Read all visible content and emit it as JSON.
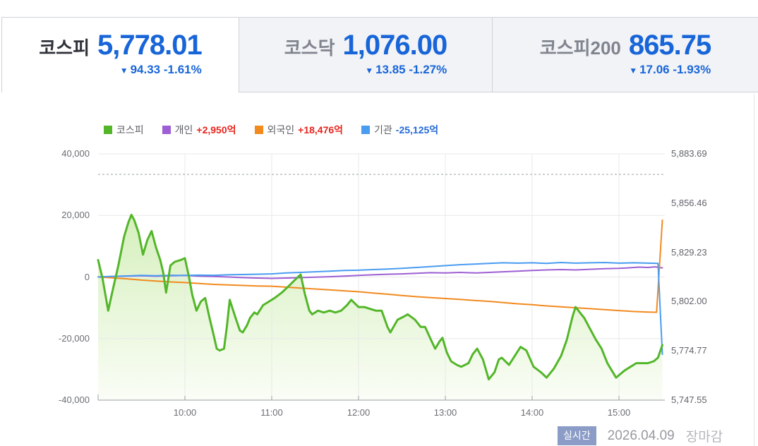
{
  "theme": {
    "down_blue": "#1765d8",
    "up_red": "#e7251d",
    "badge_bg": "#8b9cc6",
    "grid": "#e8e8e8",
    "axis": "#9aa0a6"
  },
  "tabs": [
    {
      "label": "코스피",
      "value": "5,778.01",
      "arrow": "▼",
      "change": "94.33 -1.61%",
      "direction": "down",
      "active": true
    },
    {
      "label": "코스닥",
      "value": "1,076.00",
      "arrow": "▼",
      "change": "13.85 -1.27%",
      "direction": "down",
      "active": false
    },
    {
      "label": "코스피200",
      "value": "865.75",
      "arrow": "▼",
      "change": "17.06 -1.93%",
      "direction": "down",
      "active": false
    }
  ],
  "legend": {
    "items": [
      {
        "label": "코스피",
        "color": "#53b629"
      },
      {
        "label": "개인",
        "value": "+2,950억",
        "color": "#9d5fd3",
        "value_color": "#e7251d"
      },
      {
        "label": "외국인",
        "value": "+18,476억",
        "color": "#f28a1f",
        "value_color": "#e7251d"
      },
      {
        "label": "기관",
        "value": "-25,125억",
        "color": "#4a9cf0",
        "value_color": "#2469d9"
      }
    ]
  },
  "footer": {
    "badge": "실시간",
    "date": "2026.04.09",
    "status": "장마감"
  },
  "chart_data": {
    "type": "line",
    "x_axis": {
      "unit": "minutes_after_09:00",
      "start": "09:00",
      "end": "15:30",
      "ticks": [
        {
          "minutes": 60,
          "label": "10:00"
        },
        {
          "minutes": 120,
          "label": "11:00"
        },
        {
          "minutes": 180,
          "label": "12:00"
        },
        {
          "minutes": 240,
          "label": "13:00"
        },
        {
          "minutes": 300,
          "label": "14:00"
        },
        {
          "minutes": 360,
          "label": "15:00"
        }
      ]
    },
    "left_axis": {
      "min": -40000,
      "max": 40000,
      "tick_values": [
        40000,
        20000,
        0,
        -20000,
        -40000
      ],
      "tick_labels": [
        "40,000",
        "20,000",
        "0",
        "-20,000",
        "-40,000"
      ]
    },
    "right_axis": {
      "min": 5747.55,
      "max": 5883.69,
      "tick_values": [
        5883.69,
        5856.46,
        5829.23,
        5802.0,
        5774.77,
        5747.55
      ],
      "tick_labels": [
        "5,883.69",
        "5,856.46",
        "5,829.23",
        "5,802.00",
        "5,774.77",
        "5,747.55"
      ]
    },
    "prev_close": 5872.34,
    "grid": true,
    "legend_position": "top",
    "series": [
      {
        "name": "코스피",
        "axis": "right",
        "color": "#53b629",
        "width": 3,
        "fill": true,
        "fill_top": "#c9ebaa",
        "fill_bottom": "#fafdf6",
        "values": [
          [
            0,
            5825
          ],
          [
            3,
            5815
          ],
          [
            7,
            5797
          ],
          [
            10,
            5808
          ],
          [
            14,
            5822
          ],
          [
            18,
            5838
          ],
          [
            21,
            5846
          ],
          [
            23,
            5850
          ],
          [
            25,
            5847
          ],
          [
            28,
            5840
          ],
          [
            31,
            5828
          ],
          [
            34,
            5836
          ],
          [
            37,
            5841
          ],
          [
            40,
            5832
          ],
          [
            43,
            5825
          ],
          [
            45,
            5818
          ],
          [
            47,
            5807
          ],
          [
            50,
            5822
          ],
          [
            53,
            5824
          ],
          [
            57,
            5825
          ],
          [
            60,
            5826
          ],
          [
            63,
            5815
          ],
          [
            65,
            5806
          ],
          [
            68,
            5797
          ],
          [
            71,
            5802
          ],
          [
            74,
            5804
          ],
          [
            77,
            5793
          ],
          [
            80,
            5783
          ],
          [
            82,
            5776
          ],
          [
            84,
            5775
          ],
          [
            87,
            5776
          ],
          [
            89,
            5788
          ],
          [
            91,
            5803
          ],
          [
            95,
            5793
          ],
          [
            98,
            5786
          ],
          [
            100,
            5785
          ],
          [
            103,
            5789
          ],
          [
            105,
            5793
          ],
          [
            108,
            5796
          ],
          [
            110,
            5795
          ],
          [
            114,
            5800
          ],
          [
            118,
            5802
          ],
          [
            122,
            5804
          ],
          [
            127,
            5807
          ],
          [
            131,
            5810
          ],
          [
            136,
            5814
          ],
          [
            140,
            5817
          ],
          [
            143,
            5806
          ],
          [
            146,
            5797
          ],
          [
            148,
            5795
          ],
          [
            152,
            5797
          ],
          [
            156,
            5796
          ],
          [
            160,
            5797
          ],
          [
            164,
            5796
          ],
          [
            168,
            5797
          ],
          [
            172,
            5800
          ],
          [
            175,
            5803
          ],
          [
            180,
            5799
          ],
          [
            184,
            5799
          ],
          [
            188,
            5798
          ],
          [
            192,
            5797
          ],
          [
            196,
            5797
          ],
          [
            200,
            5788
          ],
          [
            202,
            5785
          ],
          [
            207,
            5792
          ],
          [
            212,
            5794
          ],
          [
            214,
            5795
          ],
          [
            219,
            5792
          ],
          [
            223,
            5788
          ],
          [
            226,
            5788
          ],
          [
            230,
            5781
          ],
          [
            233,
            5776
          ],
          [
            236,
            5780
          ],
          [
            238,
            5782
          ],
          [
            241,
            5774
          ],
          [
            244,
            5769
          ],
          [
            248,
            5767
          ],
          [
            251,
            5766
          ],
          [
            256,
            5768
          ],
          [
            259,
            5773
          ],
          [
            262,
            5776
          ],
          [
            266,
            5770
          ],
          [
            270,
            5759
          ],
          [
            274,
            5763
          ],
          [
            277,
            5770
          ],
          [
            279,
            5771
          ],
          [
            284,
            5767
          ],
          [
            288,
            5772
          ],
          [
            292,
            5777
          ],
          [
            296,
            5775
          ],
          [
            301,
            5766
          ],
          [
            306,
            5763
          ],
          [
            310,
            5760
          ],
          [
            315,
            5765
          ],
          [
            320,
            5772
          ],
          [
            324,
            5781
          ],
          [
            328,
            5794
          ],
          [
            330,
            5799
          ],
          [
            333,
            5796
          ],
          [
            336,
            5793
          ],
          [
            340,
            5787
          ],
          [
            344,
            5781
          ],
          [
            348,
            5776
          ],
          [
            352,
            5768
          ],
          [
            355,
            5764
          ],
          [
            358,
            5760
          ],
          [
            361,
            5762
          ],
          [
            364,
            5764
          ],
          [
            368,
            5766
          ],
          [
            372,
            5768
          ],
          [
            376,
            5768
          ],
          [
            380,
            5768
          ],
          [
            384,
            5769
          ],
          [
            387,
            5771
          ],
          [
            390,
            5778
          ]
        ]
      },
      {
        "name": "개인",
        "axis": "left",
        "color": "#9d5fd3",
        "width": 2,
        "values": [
          [
            0,
            0
          ],
          [
            10,
            150
          ],
          [
            20,
            300
          ],
          [
            30,
            400
          ],
          [
            40,
            250
          ],
          [
            50,
            400
          ],
          [
            60,
            500
          ],
          [
            70,
            300
          ],
          [
            80,
            150
          ],
          [
            90,
            0
          ],
          [
            100,
            -200
          ],
          [
            110,
            -350
          ],
          [
            120,
            -450
          ],
          [
            130,
            -350
          ],
          [
            140,
            -200
          ],
          [
            150,
            -50
          ],
          [
            160,
            100
          ],
          [
            170,
            300
          ],
          [
            180,
            500
          ],
          [
            190,
            700
          ],
          [
            200,
            900
          ],
          [
            210,
            1000
          ],
          [
            220,
            1200
          ],
          [
            230,
            1400
          ],
          [
            240,
            1300
          ],
          [
            250,
            1500
          ],
          [
            255,
            1400
          ],
          [
            262,
            1300
          ],
          [
            270,
            1500
          ],
          [
            280,
            1700
          ],
          [
            290,
            1900
          ],
          [
            300,
            2100
          ],
          [
            310,
            2300
          ],
          [
            320,
            2400
          ],
          [
            330,
            2300
          ],
          [
            340,
            2500
          ],
          [
            350,
            2700
          ],
          [
            360,
            2800
          ],
          [
            368,
            3000
          ],
          [
            374,
            3200
          ],
          [
            380,
            3100
          ],
          [
            385,
            3300
          ],
          [
            390,
            2950
          ]
        ]
      },
      {
        "name": "외국인",
        "axis": "left",
        "color": "#f28a1f",
        "width": 2,
        "values": [
          [
            0,
            0
          ],
          [
            10,
            -300
          ],
          [
            20,
            -600
          ],
          [
            30,
            -1000
          ],
          [
            40,
            -1300
          ],
          [
            50,
            -1600
          ],
          [
            60,
            -1800
          ],
          [
            70,
            -2100
          ],
          [
            80,
            -2400
          ],
          [
            90,
            -2600
          ],
          [
            100,
            -2750
          ],
          [
            110,
            -2900
          ],
          [
            120,
            -3000
          ],
          [
            130,
            -3300
          ],
          [
            140,
            -3600
          ],
          [
            150,
            -3900
          ],
          [
            160,
            -4200
          ],
          [
            170,
            -4500
          ],
          [
            180,
            -4800
          ],
          [
            190,
            -5200
          ],
          [
            200,
            -5600
          ],
          [
            210,
            -6000
          ],
          [
            220,
            -6400
          ],
          [
            230,
            -6700
          ],
          [
            240,
            -7000
          ],
          [
            250,
            -7300
          ],
          [
            260,
            -7600
          ],
          [
            270,
            -7900
          ],
          [
            280,
            -8300
          ],
          [
            290,
            -8700
          ],
          [
            300,
            -9000
          ],
          [
            310,
            -9400
          ],
          [
            320,
            -9700
          ],
          [
            330,
            -10000
          ],
          [
            340,
            -10300
          ],
          [
            350,
            -10600
          ],
          [
            360,
            -10900
          ],
          [
            370,
            -11200
          ],
          [
            380,
            -11400
          ],
          [
            386,
            -11450
          ],
          [
            390,
            18476
          ]
        ]
      },
      {
        "name": "기관",
        "axis": "left",
        "color": "#4a9cf0",
        "width": 2,
        "values": [
          [
            0,
            0
          ],
          [
            10,
            200
          ],
          [
            20,
            350
          ],
          [
            30,
            500
          ],
          [
            40,
            400
          ],
          [
            50,
            550
          ],
          [
            60,
            500
          ],
          [
            70,
            600
          ],
          [
            80,
            550
          ],
          [
            90,
            700
          ],
          [
            100,
            800
          ],
          [
            110,
            900
          ],
          [
            120,
            1000
          ],
          [
            130,
            1300
          ],
          [
            140,
            1500
          ],
          [
            150,
            1700
          ],
          [
            160,
            1900
          ],
          [
            170,
            2100
          ],
          [
            180,
            2200
          ],
          [
            190,
            2400
          ],
          [
            200,
            2600
          ],
          [
            210,
            2800
          ],
          [
            220,
            3100
          ],
          [
            230,
            3400
          ],
          [
            240,
            3700
          ],
          [
            250,
            4000
          ],
          [
            260,
            4200
          ],
          [
            270,
            4400
          ],
          [
            280,
            4600
          ],
          [
            290,
            4500
          ],
          [
            300,
            4600
          ],
          [
            310,
            4400
          ],
          [
            320,
            4700
          ],
          [
            330,
            4500
          ],
          [
            340,
            4600
          ],
          [
            350,
            4700
          ],
          [
            360,
            4500
          ],
          [
            370,
            4600
          ],
          [
            380,
            4500
          ],
          [
            387,
            4400
          ],
          [
            390,
            -25125
          ]
        ]
      }
    ]
  }
}
